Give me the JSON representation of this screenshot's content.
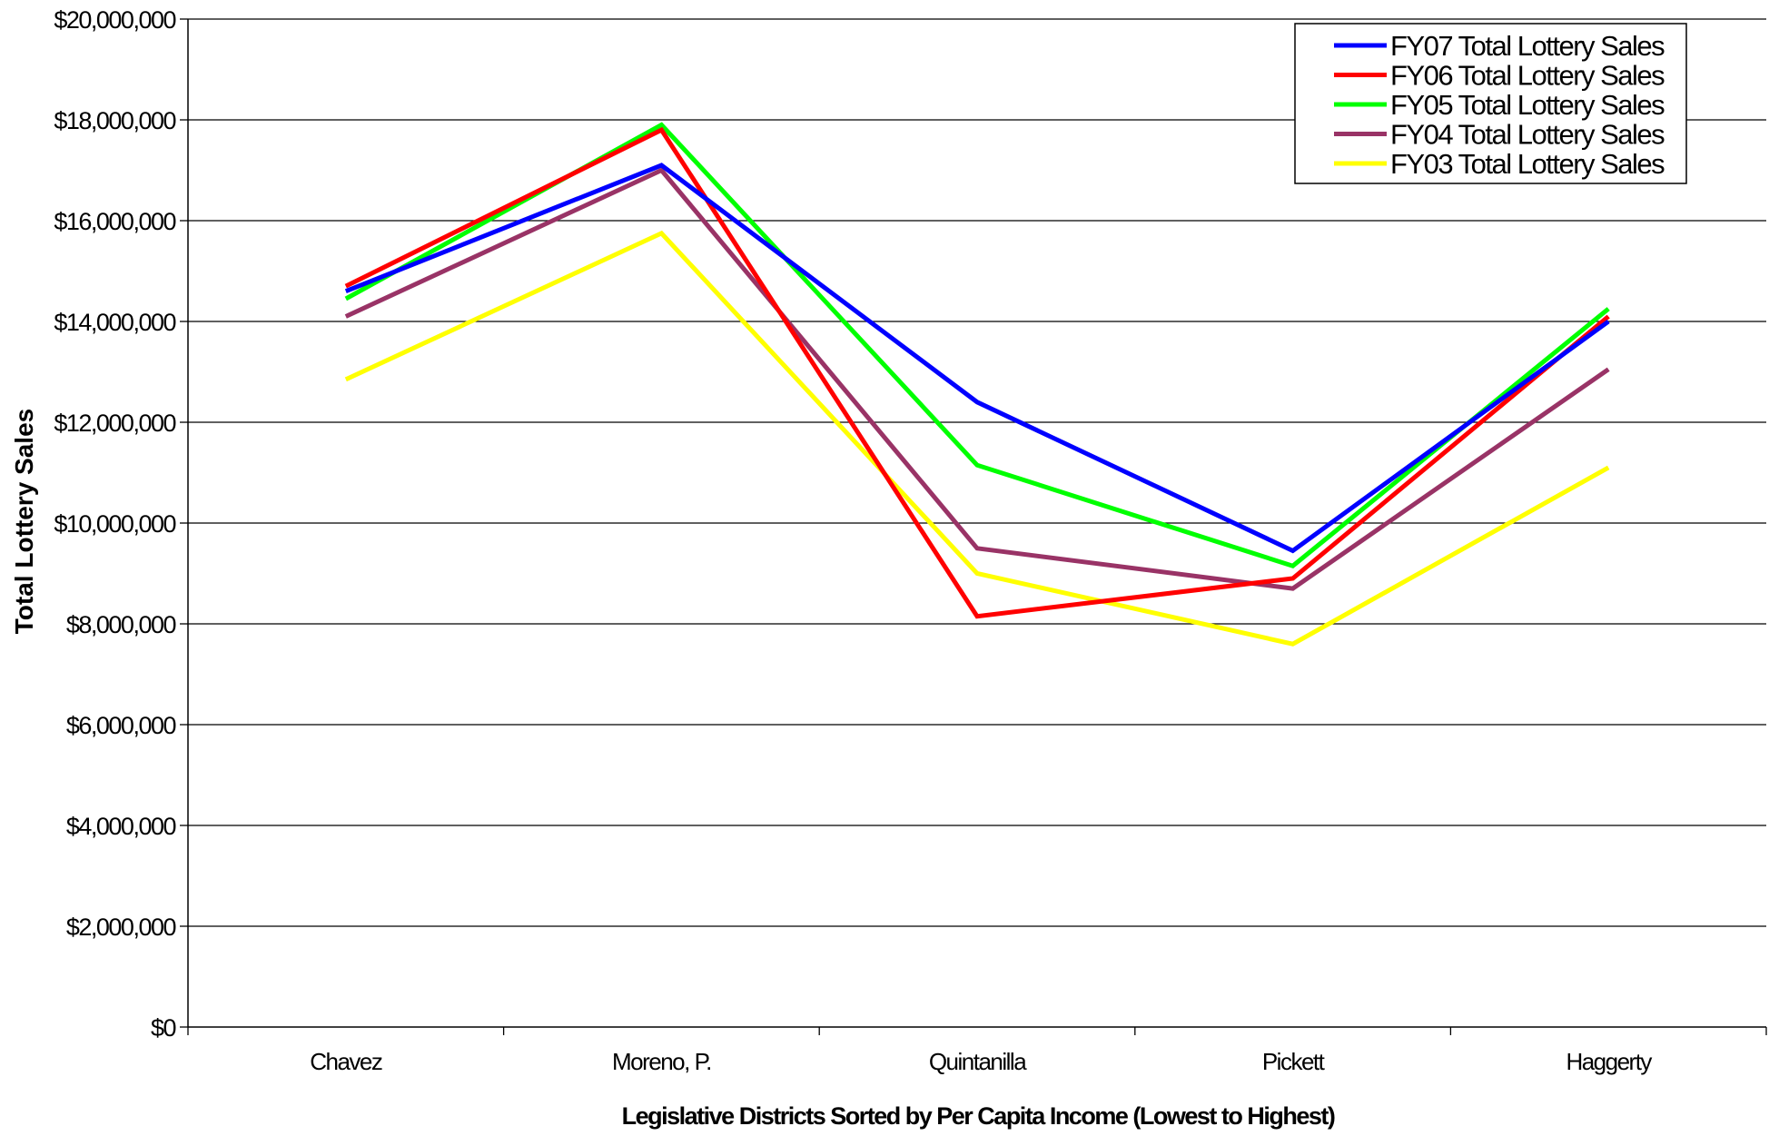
{
  "chart_data": {
    "type": "line",
    "title": "",
    "xlabel": "Legislative Districts Sorted by Per Capita Income (Lowest to Highest)",
    "ylabel": "Total  Lottery Sales",
    "categories": [
      "Chavez",
      "Moreno, P.",
      "Quintanilla",
      "Pickett",
      "Haggerty"
    ],
    "ylim": [
      0,
      20000000
    ],
    "yticks": [
      0,
      2000000,
      4000000,
      6000000,
      8000000,
      10000000,
      12000000,
      14000000,
      16000000,
      18000000,
      20000000
    ],
    "ytick_labels": [
      "$0",
      "$2,000,000",
      "$4,000,000",
      "$6,000,000",
      "$8,000,000",
      "$10,000,000",
      "$12,000,000",
      "$14,000,000",
      "$16,000,000",
      "$18,000,000",
      "$20,000,000"
    ],
    "grid": "horizontal",
    "legend_position": "top-right",
    "series": [
      {
        "name": "FY07 Total Lottery Sales",
        "color": "#0000ff",
        "values": [
          14600000,
          17100000,
          12400000,
          9450000,
          14000000
        ]
      },
      {
        "name": "FY06 Total Lottery Sales",
        "color": "#ff0000",
        "values": [
          14700000,
          17800000,
          8150000,
          8900000,
          14100000
        ]
      },
      {
        "name": "FY05 Total Lottery Sales",
        "color": "#00ff00",
        "values": [
          14450000,
          17900000,
          11150000,
          9150000,
          14250000
        ]
      },
      {
        "name": "FY04 Total Lottery Sales",
        "color": "#993366",
        "values": [
          14100000,
          17000000,
          9500000,
          8700000,
          13050000
        ]
      },
      {
        "name": "FY03 Total Lottery Sales",
        "color": "#ffff00",
        "values": [
          12850000,
          15750000,
          9000000,
          7600000,
          11100000
        ]
      }
    ]
  }
}
